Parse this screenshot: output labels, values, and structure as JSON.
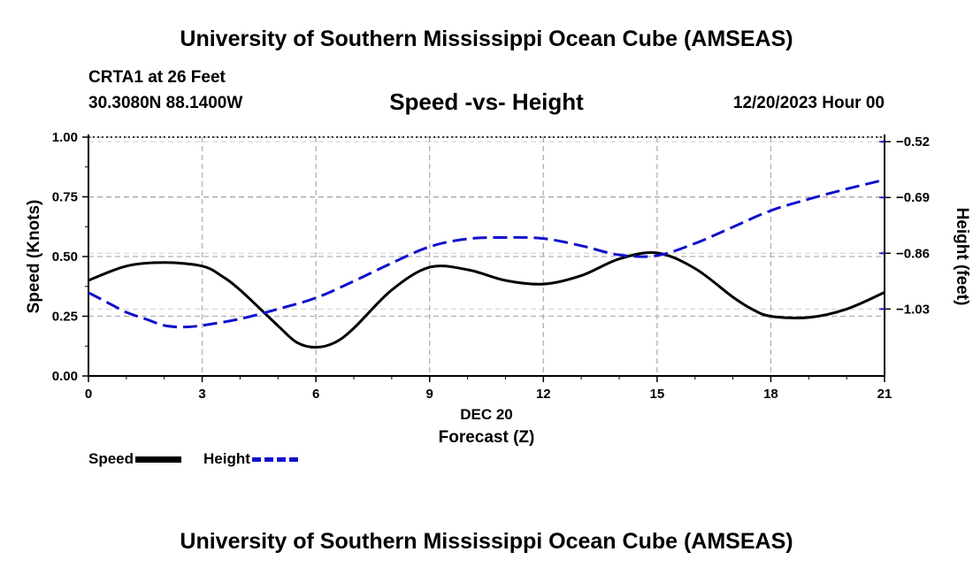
{
  "header": {
    "title": "University of Southern Mississippi Ocean Cube (AMSEAS)",
    "station": "CRTA1 at 26 Feet",
    "coords": "30.3080N  88.1400W",
    "subtitle": "Speed -vs- Height",
    "date_hour": "12/20/2023 Hour 00"
  },
  "footer": {
    "title": "University of Southern Mississippi Ocean Cube (AMSEAS)"
  },
  "legend": {
    "speed_label": "Speed",
    "height_label": "Height"
  },
  "colors": {
    "speed": "#000000",
    "height": "#1010cc",
    "grid": "#b0b0b0"
  },
  "chart_data": {
    "type": "line",
    "title": "Speed -vs- Height",
    "xlabel": "Forecast (Z)",
    "xlabel_date": "DEC 20",
    "ylabel_left": "Speed (Knots)",
    "ylabel_right": "Height (feet)",
    "xlim": [
      0,
      21
    ],
    "x_ticks": [
      0,
      3,
      6,
      9,
      12,
      15,
      18,
      21
    ],
    "x_tick_labels": [
      "0",
      "3",
      "6",
      "9",
      "12",
      "15",
      "18",
      "21"
    ],
    "ylim_left": [
      0,
      1
    ],
    "y_ticks_left": [
      0,
      0.25,
      0.5,
      0.75,
      1.0
    ],
    "y_tick_labels_left": [
      "0.00",
      "0.25",
      "0.50",
      "0.75",
      "1.00"
    ],
    "ylim_right": [
      -1.234,
      -0.506
    ],
    "y_ticks_right": [
      -0.52,
      -0.69,
      -0.86,
      -1.03
    ],
    "y_tick_labels_right": [
      "−0.52",
      "−0.69",
      "−0.86",
      "−1.03"
    ],
    "grid": true,
    "series": [
      {
        "name": "Speed",
        "axis": "left",
        "style": "solid",
        "x": [
          0,
          1,
          2,
          3,
          3.5,
          4,
          5,
          5.5,
          6,
          6.5,
          7,
          8,
          9,
          10,
          11,
          12,
          13,
          14,
          15,
          16,
          17,
          17.5,
          18,
          19,
          20,
          21
        ],
        "values": [
          0.4,
          0.46,
          0.475,
          0.46,
          0.42,
          0.36,
          0.21,
          0.14,
          0.12,
          0.14,
          0.2,
          0.36,
          0.455,
          0.445,
          0.4,
          0.385,
          0.42,
          0.49,
          0.515,
          0.45,
          0.33,
          0.28,
          0.25,
          0.245,
          0.28,
          0.35
        ]
      },
      {
        "name": "Height",
        "axis": "right",
        "style": "dashed",
        "x": [
          0,
          0.5,
          1,
          1.5,
          2,
          2.5,
          3,
          4,
          5,
          6,
          7,
          8,
          9,
          10,
          11,
          12,
          13,
          14,
          15,
          16,
          17,
          18,
          19,
          20,
          21
        ],
        "values": [
          -0.98,
          -1.01,
          -1.04,
          -1.06,
          -1.08,
          -1.085,
          -1.08,
          -1.06,
          -1.03,
          -0.996,
          -0.945,
          -0.89,
          -0.84,
          -0.816,
          -0.812,
          -0.815,
          -0.837,
          -0.865,
          -0.867,
          -0.83,
          -0.78,
          -0.73,
          -0.695,
          -0.664,
          -0.636
        ]
      }
    ]
  }
}
